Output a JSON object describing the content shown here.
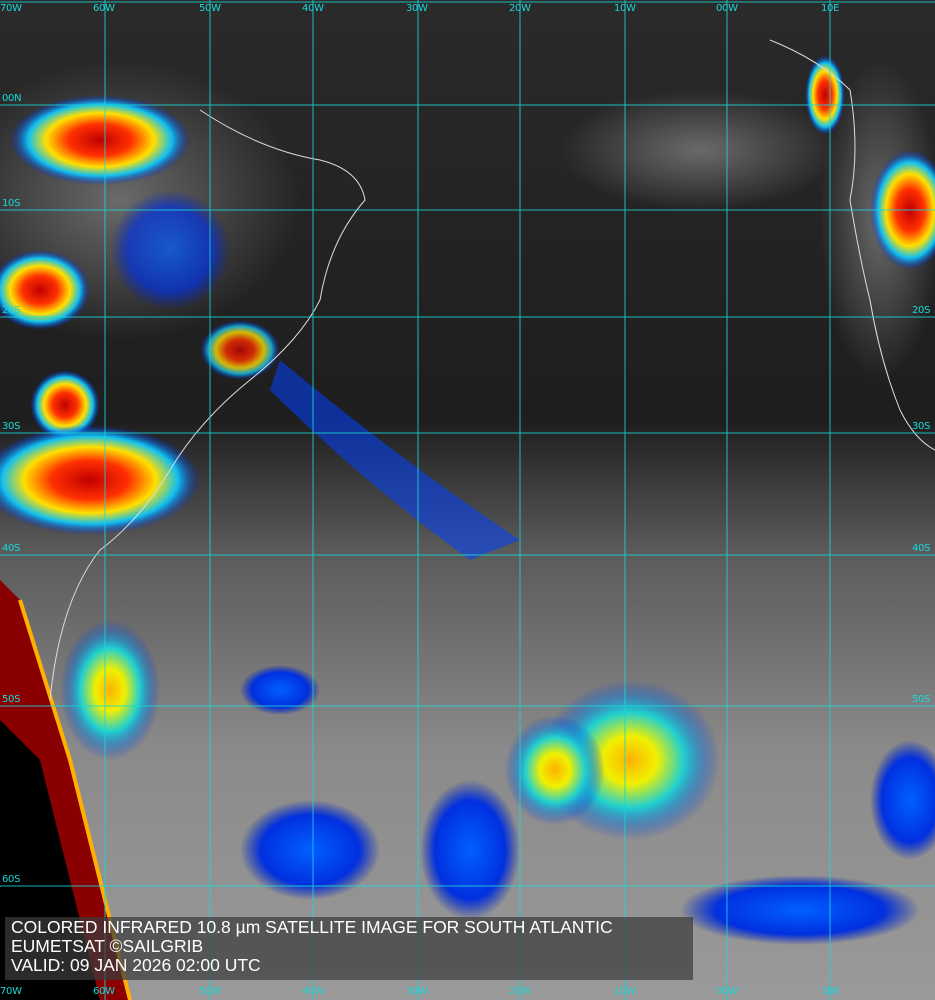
{
  "caption": {
    "title": "COLORED INFRARED 10.8 µm SATELLITE IMAGE FOR SOUTH ATLANTIC",
    "credit": "EUMETSAT ©SAILGRIB",
    "valid": "VALID:  09 JAN 2026 02:00 UTC"
  },
  "longitude_labels": [
    "70W",
    "60W",
    "50W",
    "40W",
    "30W",
    "20W",
    "10W",
    "00W",
    "10E"
  ],
  "latitude_labels_left": [
    "00N",
    "10S",
    "20S",
    "30S",
    "40S",
    "50S",
    "60S"
  ],
  "latitude_labels_right": [
    "20S",
    "30S",
    "40S",
    "50S"
  ],
  "colors": {
    "grid": "#19d8d8",
    "caption_text": "#ffffff",
    "caption_bg": "#3c3c3c"
  }
}
